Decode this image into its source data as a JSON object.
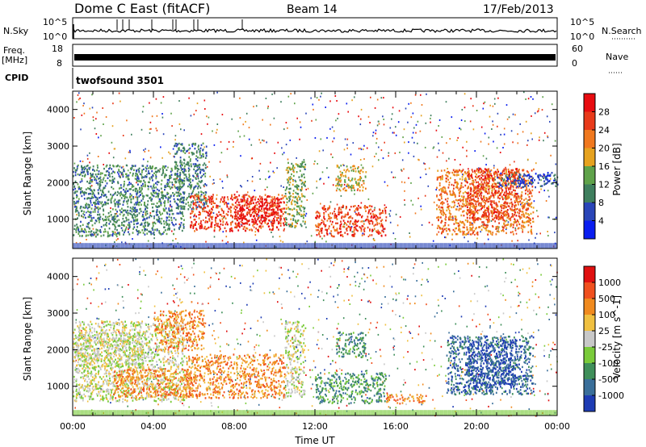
{
  "header": {
    "site": "Dome C East (fitACF)",
    "beam": "Beam 14",
    "date": "17/Feb/2013"
  },
  "strips": {
    "nsky_label": "N.Sky",
    "nsky_ticks": [
      "10^5",
      "10^0"
    ],
    "nsearch_label": "N.Search",
    "nsearch_ticks": [
      "10^5",
      "10^0"
    ],
    "freq_label_1": "Freq.",
    "freq_label_2": "[MHz]",
    "freq_ticks": [
      "18",
      "8"
    ],
    "nave_label": "Nave",
    "nave_ticks": [
      "60",
      "0"
    ],
    "cpid_label": "CPID",
    "cpid_value": "twofsound 3501"
  },
  "chart_data": [
    {
      "type": "heatmap",
      "title": "",
      "xlabel": "",
      "ylabel": "Slant Range [km]",
      "xlim": [
        0,
        24
      ],
      "ylim": [
        200,
        4500
      ],
      "yticks": [
        1000,
        2000,
        3000,
        4000
      ],
      "colorbar": {
        "label": "Power [dB]",
        "ticks": [
          4,
          8,
          12,
          16,
          20,
          24,
          28
        ],
        "colors": [
          "#0a1ef0",
          "#2a45b8",
          "#3f7f5e",
          "#5fa24a",
          "#e6a21f",
          "#f0781e",
          "#e83a1a",
          "#e80c10"
        ]
      },
      "regions": [
        {
          "t0": 0.0,
          "t1": 2.2,
          "r0": 550,
          "r1": 2500,
          "level": 2
        },
        {
          "t0": 2.2,
          "t1": 5.5,
          "r0": 600,
          "r1": 2500,
          "level": 2
        },
        {
          "t0": 5.0,
          "t1": 6.6,
          "r0": 1300,
          "r1": 3100,
          "level": 2
        },
        {
          "t0": 5.8,
          "t1": 10.5,
          "r0": 700,
          "r1": 1700,
          "level": 6
        },
        {
          "t0": 8.0,
          "t1": 10.3,
          "r0": 900,
          "r1": 1600,
          "level": 7
        },
        {
          "t0": 10.5,
          "t1": 11.5,
          "r0": 800,
          "r1": 2600,
          "level": 3
        },
        {
          "t0": 12.0,
          "t1": 15.5,
          "r0": 550,
          "r1": 1400,
          "level": 6
        },
        {
          "t0": 13.0,
          "t1": 14.5,
          "r0": 1800,
          "r1": 2500,
          "level": 4
        },
        {
          "t0": 18.0,
          "t1": 22.8,
          "r0": 600,
          "r1": 2400,
          "level": 5
        },
        {
          "t0": 19.5,
          "t1": 22.0,
          "r0": 1000,
          "r1": 2400,
          "level": 6
        },
        {
          "t0": 21.0,
          "t1": 24.0,
          "r0": 1900,
          "r1": 2300,
          "level": 1
        }
      ]
    },
    {
      "type": "heatmap",
      "title": "",
      "xlabel": "Time UT",
      "ylabel": "Slant Range [km]",
      "xlim": [
        0,
        24
      ],
      "ylim": [
        200,
        4500
      ],
      "yticks": [
        1000,
        2000,
        3000,
        4000
      ],
      "xticks": [
        "00:00",
        "04:00",
        "08:00",
        "12:00",
        "16:00",
        "20:00",
        "00:00"
      ],
      "colorbar": {
        "label": "Velocity [m s^-1]",
        "ticks": [
          1000,
          500,
          100,
          25,
          -25,
          -100,
          -500,
          -1000
        ],
        "colors": [
          "#1e3cb4",
          "#3a6f9a",
          "#3f8f5a",
          "#7acb3a",
          "#c8c8c8",
          "#f0c040",
          "#f08a1e",
          "#f0501e",
          "#e01010"
        ]
      },
      "regions": [
        {
          "t0": 0.0,
          "t1": 5.5,
          "r0": 600,
          "r1": 2800,
          "level": 4
        },
        {
          "t0": 0.0,
          "t1": 3.5,
          "r0": 1500,
          "r1": 2500,
          "level": 4
        },
        {
          "t0": 2.0,
          "t1": 6.0,
          "r0": 700,
          "r1": 1500,
          "level": 6
        },
        {
          "t0": 5.5,
          "t1": 10.5,
          "r0": 700,
          "r1": 1900,
          "level": 6
        },
        {
          "t0": 4.0,
          "t1": 6.5,
          "r0": 2000,
          "r1": 3100,
          "level": 6
        },
        {
          "t0": 10.5,
          "t1": 11.5,
          "r0": 700,
          "r1": 2800,
          "level": 4
        },
        {
          "t0": 12.0,
          "t1": 15.5,
          "r0": 550,
          "r1": 1400,
          "level": 2
        },
        {
          "t0": 13.0,
          "t1": 14.5,
          "r0": 1800,
          "r1": 2500,
          "level": 2
        },
        {
          "t0": 15.5,
          "t1": 17.5,
          "r0": 550,
          "r1": 800,
          "level": 6
        },
        {
          "t0": 18.5,
          "t1": 22.8,
          "r0": 800,
          "r1": 2400,
          "level": 1
        },
        {
          "t0": 19.5,
          "t1": 22.0,
          "r0": 1000,
          "r1": 2300,
          "level": 0
        }
      ]
    }
  ]
}
